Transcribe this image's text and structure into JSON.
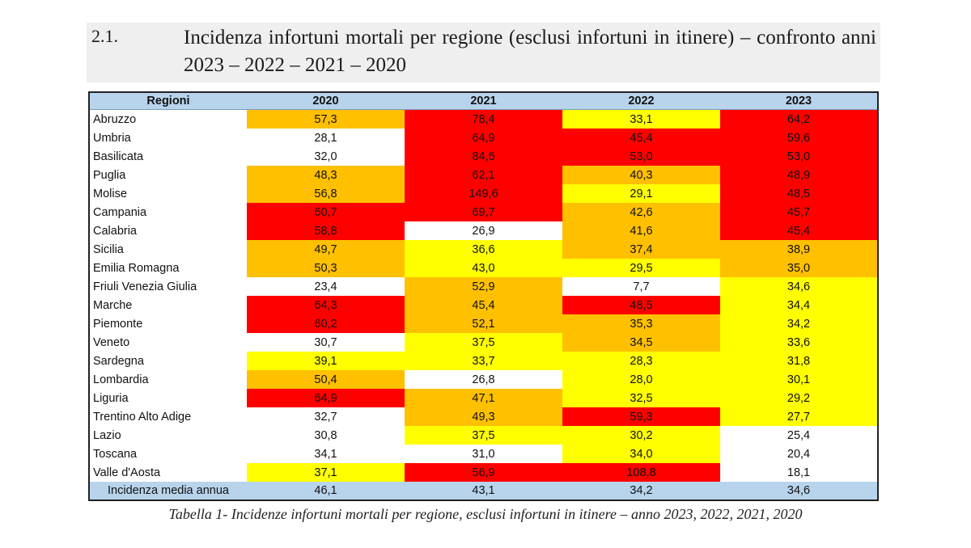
{
  "heading": {
    "number": "2.1.",
    "title": "Incidenza infortuni mortali per regione (esclusi infortuni in itinere) – confronto anni 2023 – 2022 – 2021 – 2020"
  },
  "colors": {
    "red": "#ff0000",
    "orange": "#ffc000",
    "yellow": "#ffff00",
    "white": "#ffffff",
    "header_blue": "#b8d4ec"
  },
  "table": {
    "headers": [
      "Regioni",
      "2020",
      "2021",
      "2022",
      "2023"
    ],
    "rows": [
      {
        "region": "Abruzzo",
        "values": [
          "57,3",
          "78,4",
          "33,1",
          "64,2"
        ],
        "colors": [
          "orange",
          "red",
          "yellow",
          "red"
        ]
      },
      {
        "region": "Umbria",
        "values": [
          "28,1",
          "64,9",
          "45,4",
          "59,6"
        ],
        "colors": [
          "white",
          "red",
          "red",
          "red"
        ]
      },
      {
        "region": "Basilicata",
        "values": [
          "32,0",
          "84,6",
          "53,0",
          "53,0"
        ],
        "colors": [
          "white",
          "red",
          "red",
          "red"
        ]
      },
      {
        "region": "Puglia",
        "values": [
          "48,3",
          "62,1",
          "40,3",
          "48,9"
        ],
        "colors": [
          "orange",
          "red",
          "orange",
          "red"
        ]
      },
      {
        "region": "Molise",
        "values": [
          "56,8",
          "149,6",
          "29,1",
          "48,5"
        ],
        "colors": [
          "orange",
          "red",
          "yellow",
          "red"
        ]
      },
      {
        "region": "Campania",
        "values": [
          "60,7",
          "69,7",
          "42,6",
          "45,7"
        ],
        "colors": [
          "red",
          "red",
          "orange",
          "red"
        ]
      },
      {
        "region": "Calabria",
        "values": [
          "58,8",
          "26,9",
          "41,6",
          "45,4"
        ],
        "colors": [
          "red",
          "white",
          "orange",
          "red"
        ]
      },
      {
        "region": "Sicilia",
        "values": [
          "49,7",
          "36,6",
          "37,4",
          "38,9"
        ],
        "colors": [
          "orange",
          "yellow",
          "orange",
          "orange"
        ]
      },
      {
        "region": "Emilia Romagna",
        "values": [
          "50,3",
          "43,0",
          "29,5",
          "35,0"
        ],
        "colors": [
          "orange",
          "yellow",
          "yellow",
          "orange"
        ]
      },
      {
        "region": "Friuli Venezia Giulia",
        "values": [
          "23,4",
          "52,9",
          "7,7",
          "34,6"
        ],
        "colors": [
          "white",
          "orange",
          "white",
          "yellow"
        ]
      },
      {
        "region": "Marche",
        "values": [
          "64,3",
          "45,4",
          "48,5",
          "34,4"
        ],
        "colors": [
          "red",
          "orange",
          "red",
          "yellow"
        ]
      },
      {
        "region": "Piemonte",
        "values": [
          "60,2",
          "52,1",
          "35,3",
          "34,2"
        ],
        "colors": [
          "red",
          "orange",
          "orange",
          "yellow"
        ]
      },
      {
        "region": "Veneto",
        "values": [
          "30,7",
          "37,5",
          "34,5",
          "33,6"
        ],
        "colors": [
          "white",
          "yellow",
          "orange",
          "yellow"
        ]
      },
      {
        "region": "Sardegna",
        "values": [
          "39,1",
          "33,7",
          "28,3",
          "31,8"
        ],
        "colors": [
          "yellow",
          "yellow",
          "yellow",
          "yellow"
        ]
      },
      {
        "region": "Lombardia",
        "values": [
          "50,4",
          "26,8",
          "28,0",
          "30,1"
        ],
        "colors": [
          "orange",
          "white",
          "yellow",
          "yellow"
        ]
      },
      {
        "region": "Liguria",
        "values": [
          "64,9",
          "47,1",
          "32,5",
          "29,2"
        ],
        "colors": [
          "red",
          "orange",
          "yellow",
          "yellow"
        ]
      },
      {
        "region": "Trentino Alto Adige",
        "values": [
          "32,7",
          "49,3",
          "59,3",
          "27,7"
        ],
        "colors": [
          "white",
          "orange",
          "red",
          "yellow"
        ]
      },
      {
        "region": "Lazio",
        "values": [
          "30,8",
          "37,5",
          "30,2",
          "25,4"
        ],
        "colors": [
          "white",
          "yellow",
          "yellow",
          "white"
        ]
      },
      {
        "region": "Toscana",
        "values": [
          "34,1",
          "31,0",
          "34,0",
          "20,4"
        ],
        "colors": [
          "white",
          "white",
          "yellow",
          "white"
        ]
      },
      {
        "region": "Valle d'Aosta",
        "values": [
          "37,1",
          "56,9",
          "108,8",
          "18,1"
        ],
        "colors": [
          "yellow",
          "red",
          "red",
          "white"
        ]
      }
    ],
    "average": {
      "label": "Incidenza media annua",
      "values": [
        "46,1",
        "43,1",
        "34,2",
        "34,6"
      ]
    }
  },
  "caption": "Tabella 1- Incidenze infortuni mortali per regione, esclusi infortuni in itinere – anno 2023, 2022, 2021, 2020"
}
